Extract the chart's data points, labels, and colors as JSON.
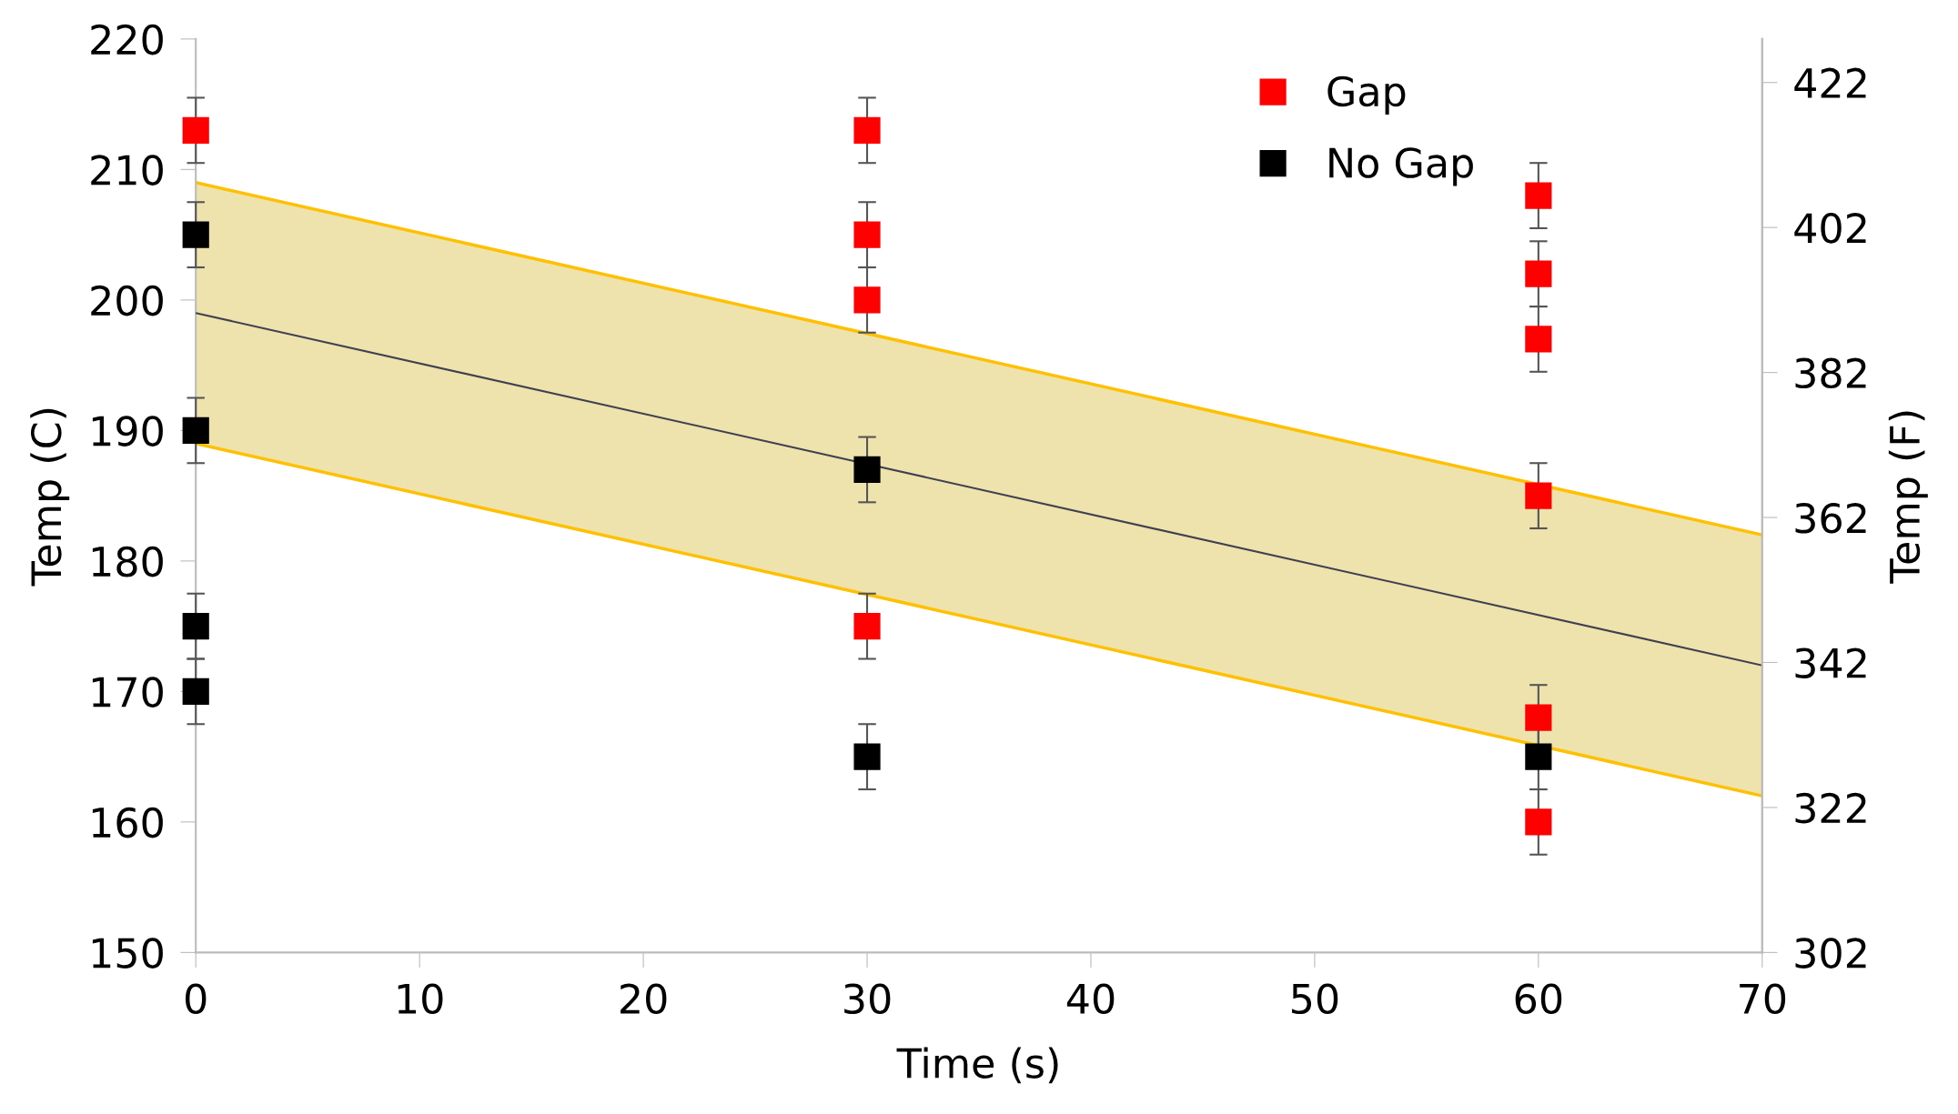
{
  "chart_data": {
    "type": "scatter",
    "xlabel": "Time (s)",
    "ylabel": "Temp (C)",
    "y2label": "Temp (F)",
    "xlim": [
      0,
      70
    ],
    "xticks": [
      0,
      10,
      20,
      30,
      40,
      50,
      60,
      70
    ],
    "ylim": [
      150,
      220
    ],
    "yticks": [
      150,
      160,
      170,
      180,
      190,
      200,
      210,
      220
    ],
    "y2lim": [
      302,
      428
    ],
    "y2ticks": [
      302,
      322,
      342,
      362,
      382,
      402,
      422
    ],
    "grid": false,
    "legend": "top right",
    "marker": "square",
    "series": [
      {
        "type": "line",
        "color": "#404050",
        "x": [
          0,
          70
        ],
        "values": [
          199,
          172
        ],
        "lower": [
          189,
          162
        ],
        "upper": [
          209,
          182
        ],
        "marker": "none"
      },
      {
        "type": "line",
        "color": "#ffc000",
        "x": [
          0,
          70
        ],
        "values": [
          209,
          182
        ],
        "marker": "none"
      },
      {
        "type": "line",
        "color": "#ffc000",
        "x": [
          0,
          70
        ],
        "values": [
          189,
          162
        ],
        "marker": "none"
      },
      {
        "name": "Gap",
        "color": "#ff0000",
        "x": [
          0,
          30,
          30,
          30,
          30,
          60,
          60,
          60,
          60,
          60,
          60
        ],
        "values": [
          213,
          213,
          205,
          200,
          175,
          208,
          202,
          197,
          185,
          168,
          160
        ],
        "errors": [
          2.5,
          2.5,
          2.5,
          2.5,
          2.5,
          2.5,
          2.5,
          2.5,
          2.5,
          2.5,
          2.5
        ]
      },
      {
        "name": "No Gap",
        "color": "#000000",
        "x": [
          0,
          0,
          0,
          0,
          30,
          30,
          60
        ],
        "values": [
          205,
          190,
          175,
          170,
          187,
          165,
          165
        ],
        "errors": [
          2.5,
          2.5,
          2.5,
          2.5,
          2.5,
          2.5,
          2.5
        ]
      }
    ]
  }
}
